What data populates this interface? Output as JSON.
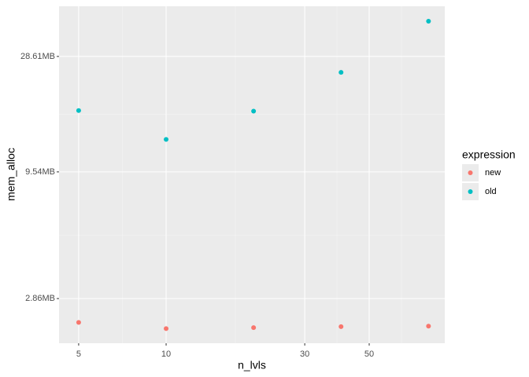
{
  "chart_data": {
    "type": "scatter",
    "x_label": "n_lvls",
    "y_label": "mem_alloc",
    "log_x": true,
    "log_y": true,
    "grid": true,
    "legend_title": "expression",
    "legend_position": "right",
    "xlim": [
      4.28,
      91.0
    ],
    "ylim": [
      1.87,
      46.1
    ],
    "xticks": [
      5,
      10,
      30,
      50
    ],
    "yticks": [
      {
        "value": 2.86,
        "label": "2.86MB"
      },
      {
        "value": 9.54,
        "label": "9.54MB"
      },
      {
        "value": 28.61,
        "label": "28.61MB"
      }
    ],
    "series": [
      {
        "name": "new",
        "color": "#f8766d",
        "x": [
          5,
          10,
          20,
          40,
          80
        ],
        "values": [
          2.28,
          2.15,
          2.17,
          2.19,
          2.2
        ]
      },
      {
        "name": "old",
        "color": "#00bfc4",
        "x": [
          5,
          10,
          20,
          40,
          80
        ],
        "values": [
          17.1,
          13.0,
          17.0,
          24.6,
          40.0
        ]
      }
    ]
  }
}
